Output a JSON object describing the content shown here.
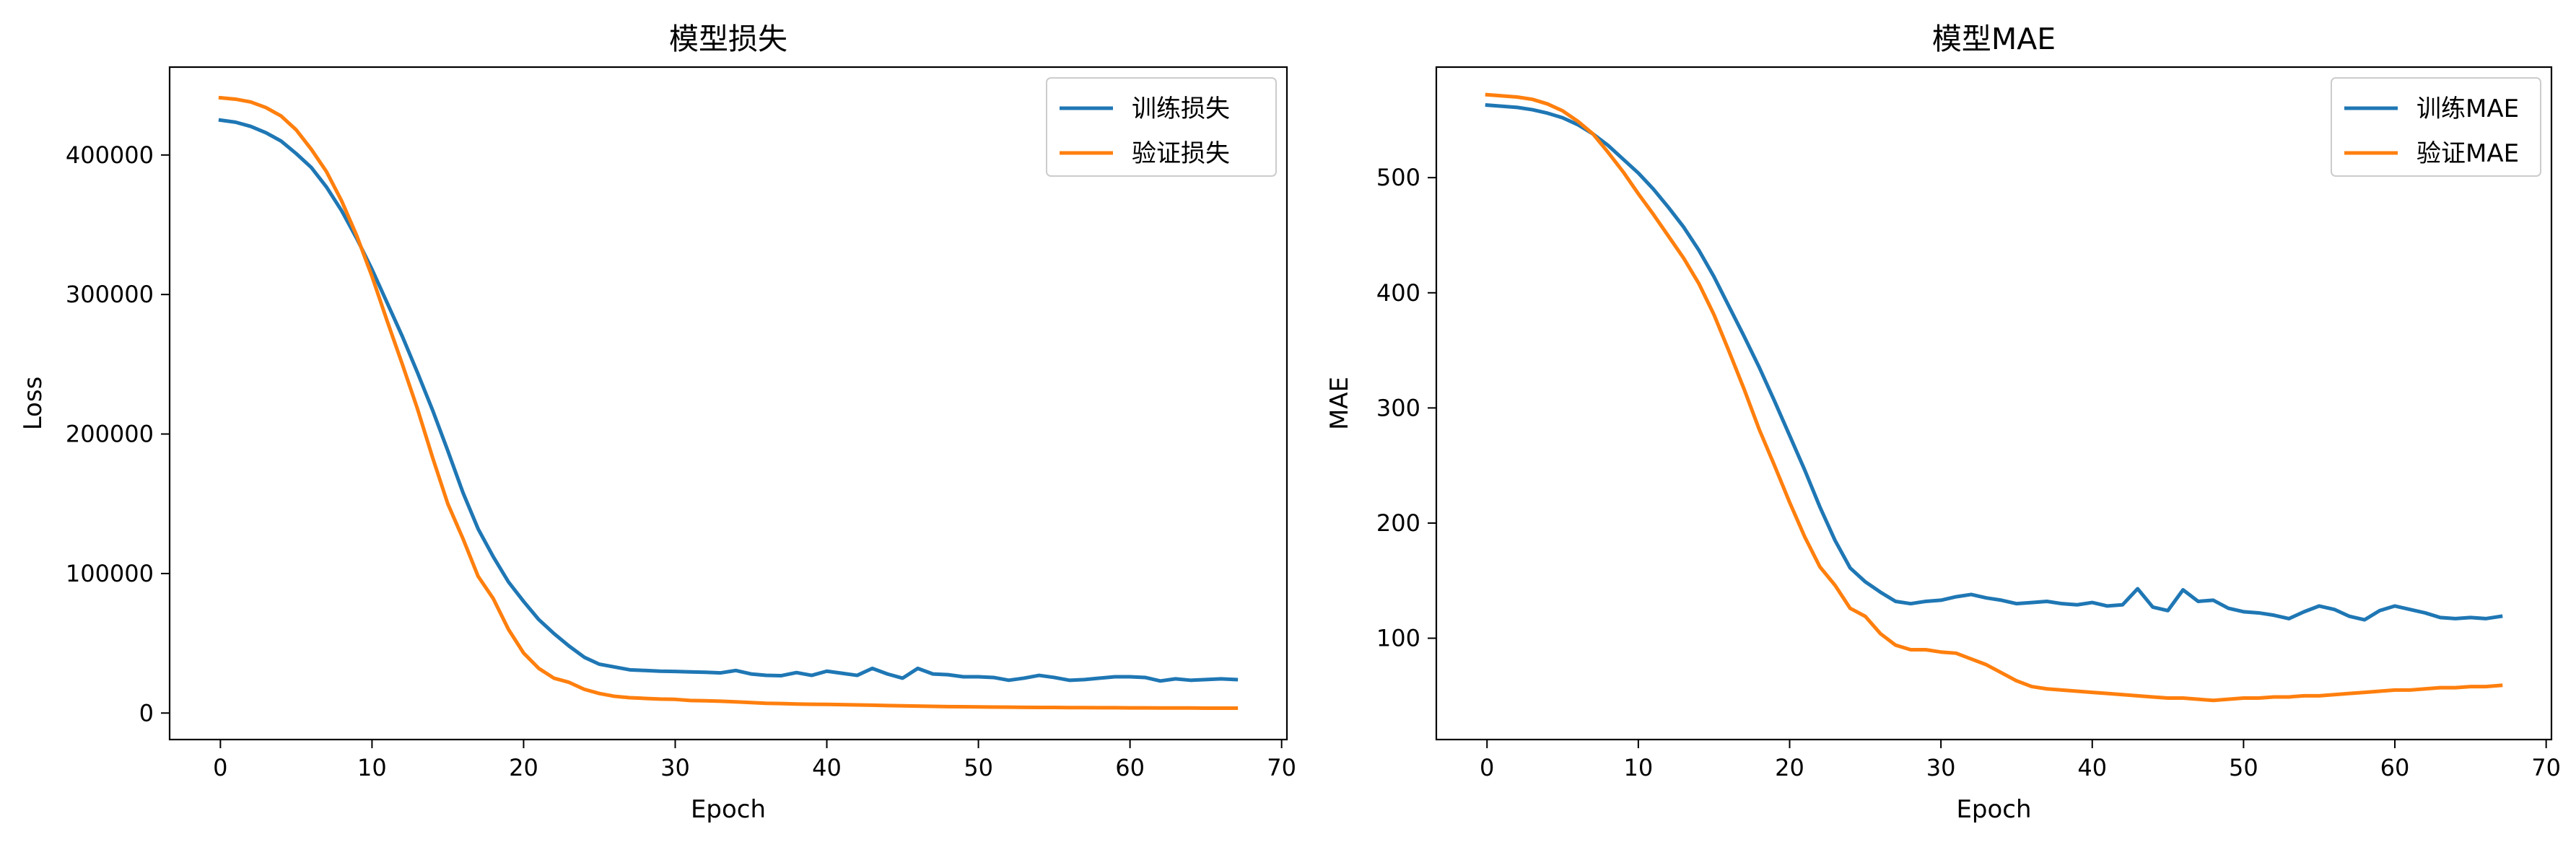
{
  "chart_data": [
    {
      "type": "line",
      "title": "模型损失",
      "xlabel": "Epoch",
      "ylabel": "Loss",
      "xlim": [
        -3.35,
        70.35
      ],
      "ylim": [
        -19000,
        463000
      ],
      "xticks": [
        0,
        10,
        20,
        30,
        40,
        50,
        60,
        70
      ],
      "yticks": [
        0,
        100000,
        200000,
        300000,
        400000
      ],
      "legend": "top-right",
      "grid": false,
      "x": [
        0,
        1,
        2,
        3,
        4,
        5,
        6,
        7,
        8,
        9,
        10,
        11,
        12,
        13,
        14,
        15,
        16,
        17,
        18,
        19,
        20,
        21,
        22,
        23,
        24,
        25,
        26,
        27,
        28,
        29,
        30,
        31,
        32,
        33,
        34,
        35,
        36,
        37,
        38,
        39,
        40,
        41,
        42,
        43,
        44,
        45,
        46,
        47,
        48,
        49,
        50,
        51,
        52,
        53,
        54,
        55,
        56,
        57,
        58,
        59,
        60,
        61,
        62,
        63,
        64,
        65,
        66,
        67
      ],
      "series": [
        {
          "name": "训练损失",
          "color": "#1f77b4",
          "values": [
            425000,
            423500,
            420500,
            416000,
            410000,
            401000,
            391000,
            377000,
            360000,
            340000,
            318000,
            294000,
            270000,
            244000,
            217000,
            188000,
            158000,
            132000,
            112000,
            94000,
            80000,
            67000,
            57000,
            48000,
            40000,
            35000,
            33000,
            31000,
            30500,
            30000,
            29800,
            29500,
            29200,
            28800,
            30500,
            28000,
            27000,
            26800,
            29000,
            27000,
            30000,
            28500,
            27000,
            32000,
            28000,
            25000,
            32000,
            28000,
            27500,
            26000,
            26000,
            25500,
            23500,
            25000,
            27000,
            25500,
            23500,
            24000,
            25000,
            26000,
            26000,
            25500,
            23000,
            24500,
            23500,
            24000,
            24500,
            24000
          ]
        },
        {
          "name": "验证损失",
          "color": "#ff7f0e",
          "values": [
            441000,
            440000,
            438000,
            434000,
            428000,
            418000,
            404000,
            388000,
            367000,
            342000,
            313000,
            281000,
            250000,
            218000,
            183000,
            150000,
            125000,
            98000,
            82000,
            60000,
            43000,
            32000,
            25000,
            22000,
            17000,
            14000,
            12000,
            11000,
            10500,
            10000,
            9800,
            9000,
            8800,
            8500,
            8000,
            7500,
            7000,
            6800,
            6500,
            6300,
            6200,
            6000,
            5800,
            5600,
            5400,
            5200,
            5000,
            4800,
            4600,
            4500,
            4400,
            4300,
            4200,
            4100,
            4000,
            4000,
            3900,
            3900,
            3800,
            3800,
            3700,
            3700,
            3600,
            3600,
            3600,
            3500,
            3500,
            3500
          ]
        }
      ]
    },
    {
      "type": "line",
      "title": "模型MAE",
      "xlabel": "Epoch",
      "ylabel": "MAE",
      "xlim": [
        -3.35,
        70.35
      ],
      "ylim": [
        12,
        596
      ],
      "xticks": [
        0,
        10,
        20,
        30,
        40,
        50,
        60,
        70
      ],
      "yticks": [
        100,
        200,
        300,
        400,
        500
      ],
      "legend": "top-right",
      "grid": false,
      "x": [
        0,
        1,
        2,
        3,
        4,
        5,
        6,
        7,
        8,
        9,
        10,
        11,
        12,
        13,
        14,
        15,
        16,
        17,
        18,
        19,
        20,
        21,
        22,
        23,
        24,
        25,
        26,
        27,
        28,
        29,
        30,
        31,
        32,
        33,
        34,
        35,
        36,
        37,
        38,
        39,
        40,
        41,
        42,
        43,
        44,
        45,
        46,
        47,
        48,
        49,
        50,
        51,
        52,
        53,
        54,
        55,
        56,
        57,
        58,
        59,
        60,
        61,
        62,
        63,
        64,
        65,
        66,
        67
      ],
      "series": [
        {
          "name": "训练MAE",
          "color": "#1f77b4",
          "values": [
            563,
            562,
            561,
            559,
            556,
            552,
            546,
            538,
            528,
            516,
            504,
            490,
            474,
            457,
            437,
            414,
            388,
            362,
            335,
            306,
            276,
            246,
            214,
            185,
            161,
            149,
            140,
            132,
            130,
            132,
            133,
            136,
            138,
            135,
            133,
            130,
            131,
            132,
            130,
            129,
            131,
            128,
            129,
            143,
            127,
            124,
            142,
            132,
            133,
            126,
            123,
            122,
            120,
            117,
            123,
            128,
            125,
            119,
            116,
            124,
            128,
            125,
            122,
            118,
            117,
            118,
            117,
            119
          ]
        },
        {
          "name": "验证MAE",
          "color": "#ff7f0e",
          "values": [
            572,
            571,
            570,
            568,
            564,
            558,
            549,
            538,
            522,
            505,
            486,
            468,
            449,
            430,
            408,
            381,
            349,
            316,
            281,
            250,
            218,
            188,
            162,
            146,
            126,
            119,
            104,
            94,
            90,
            90,
            88,
            87,
            82,
            77,
            70,
            63,
            58,
            56,
            55,
            54,
            53,
            52,
            51,
            50,
            49,
            48,
            48,
            47,
            46,
            47,
            48,
            48,
            49,
            49,
            50,
            50,
            51,
            52,
            53,
            54,
            55,
            55,
            56,
            57,
            57,
            58,
            58,
            59
          ]
        }
      ]
    }
  ]
}
